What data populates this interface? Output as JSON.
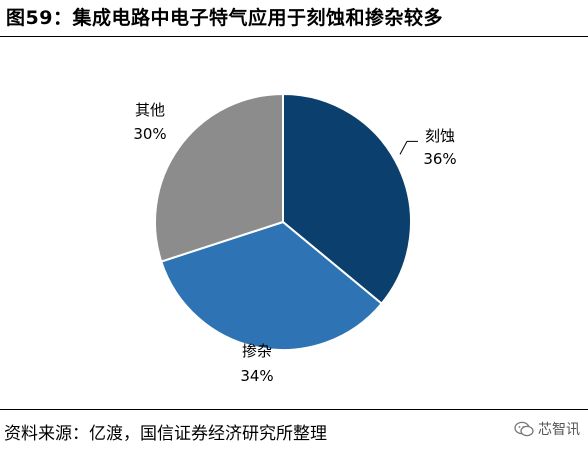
{
  "figure": {
    "title": "图59：集成电路中电子特气应用于刻蚀和掺杂较多",
    "source": "资料来源：亿渡，国信证券经济研究所整理",
    "watermark_text": "芯智讯"
  },
  "chart_data": {
    "type": "pie",
    "start_angle_deg": 90,
    "direction": "clockwise",
    "slices": [
      {
        "label": "刻蚀",
        "value": 36,
        "value_label": "36%",
        "color": "#0b3f6e"
      },
      {
        "label": "掺杂",
        "value": 34,
        "value_label": "34%",
        "color": "#2e74b5"
      },
      {
        "label": "其他",
        "value": 30,
        "value_label": "30%",
        "color": "#8c8c8c"
      }
    ],
    "legend": "none"
  }
}
